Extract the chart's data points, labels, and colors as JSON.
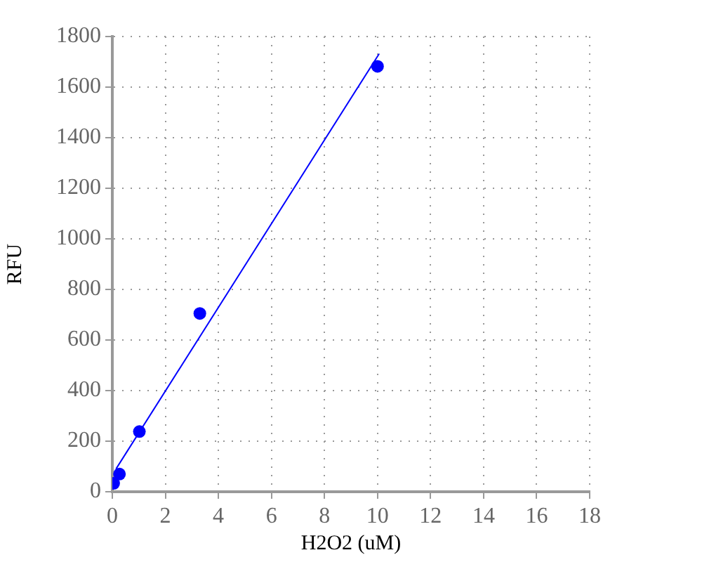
{
  "chart_data": {
    "type": "scatter",
    "xlabel": "H2O2 (uM)",
    "ylabel": "RFU",
    "x": [
      0.05,
      0.27,
      1.02,
      3.3,
      10
    ],
    "series": [
      {
        "color": "#0000ff",
        "marker": "circle",
        "values": [
          33,
          70,
          238,
          705,
          1682
        ]
      },
      {
        "type": "line",
        "color": "#0000ff",
        "marker": "none",
        "line_style": "solid",
        "x": [
          0.15,
          10.05
        ],
        "values": [
          92,
          1730
        ]
      }
    ],
    "xlim": [
      0,
      18
    ],
    "ylim": [
      0,
      1800
    ],
    "xticks": [
      0,
      2,
      4,
      6,
      8,
      10,
      12,
      14,
      16,
      18
    ],
    "yticks": [
      0,
      200,
      400,
      600,
      800,
      1000,
      1200,
      1400,
      1600,
      1800
    ],
    "grid": true,
    "legend": false
  }
}
